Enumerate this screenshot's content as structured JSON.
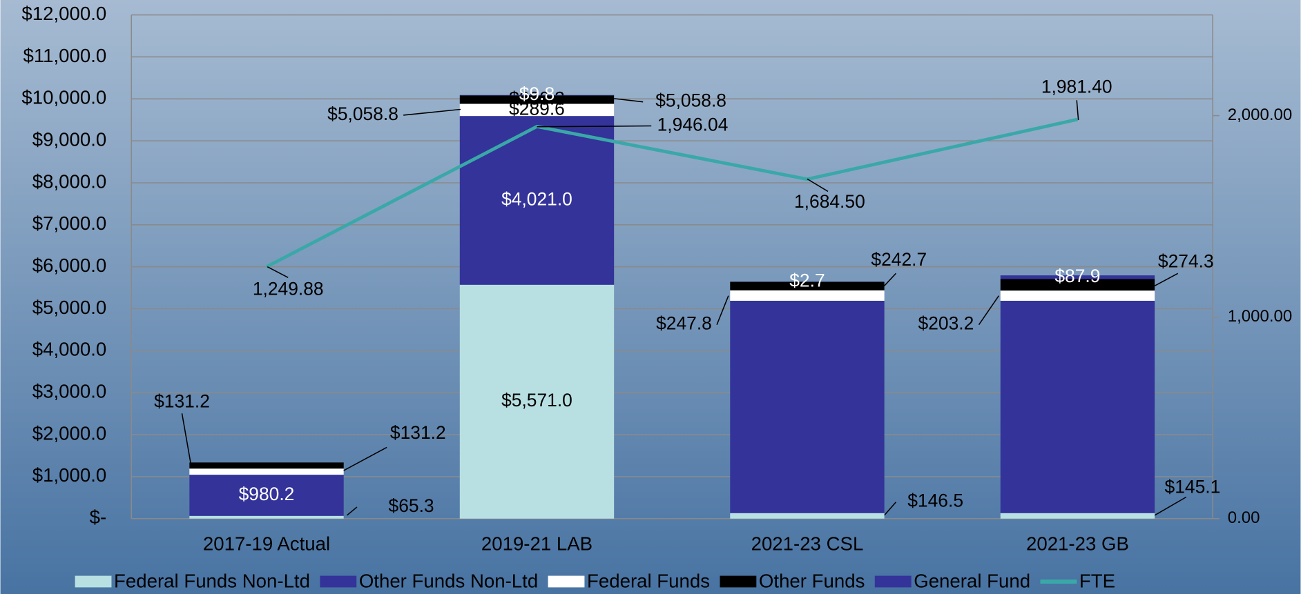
{
  "chart_data": {
    "type": "bar",
    "stacked": true,
    "categories": [
      "2017-19 Actual",
      "2019-21 LAB",
      "2021-23 CSL",
      "2021-23 GB"
    ],
    "series": [
      {
        "name": "Federal Funds Non-Ltd",
        "color": "#b8e0e2",
        "values": [
          65.3,
          5571.0,
          131.2,
          131.2
        ],
        "value_labels": [
          "$65.3",
          "$5,571.0",
          "$131.2",
          "$131.2"
        ]
      },
      {
        "name": "Other Funds Non-Ltd",
        "color": "#333399",
        "values": [
          980.2,
          4021.0,
          5058.8,
          5058.8
        ],
        "value_labels": [
          "$980.2",
          "$4,021.0",
          "$5,058.8",
          "$5,058.8"
        ]
      },
      {
        "name": "Federal Funds",
        "color": "#ffffff",
        "values": [
          146.5,
          289.6,
          247.8,
          242.7
        ],
        "value_labels": [
          "$146.5",
          "$289.6",
          "$247.8",
          "$242.7"
        ]
      },
      {
        "name": "Other Funds",
        "color": "#000000",
        "values": [
          145.1,
          200.3,
          203.2,
          274.3
        ],
        "value_labels": [
          "$145.1",
          "$200.3",
          "$203.2",
          "$274.3"
        ]
      },
      {
        "name": "General Fund",
        "color": "#333399",
        "values": [
          null,
          9.8,
          2.7,
          87.9
        ],
        "value_labels": [
          null,
          "$9.8",
          "$2.7",
          "$87.9"
        ]
      },
      {
        "name": "FTE",
        "color": "#3aa8a8",
        "type": "line",
        "axis": "y2",
        "values": [
          1249.88,
          1946.04,
          1684.5,
          1981.4
        ],
        "value_labels": [
          "1,249.88",
          "1,946.04",
          "1,684.50",
          "1,981.40"
        ]
      }
    ],
    "ylim": [
      0,
      12000
    ],
    "yticks": [
      {
        "value": 0,
        "label": "$-"
      },
      {
        "value": 1000,
        "label": "$1,000.0"
      },
      {
        "value": 2000,
        "label": "$2,000.0"
      },
      {
        "value": 3000,
        "label": "$3,000.0"
      },
      {
        "value": 4000,
        "label": "$4,000.0"
      },
      {
        "value": 5000,
        "label": "$5,000.0"
      },
      {
        "value": 6000,
        "label": "$6,000.0"
      },
      {
        "value": 7000,
        "label": "$7,000.0"
      },
      {
        "value": 8000,
        "label": "$8,000.0"
      },
      {
        "value": 9000,
        "label": "$9,000.0"
      },
      {
        "value": 10000,
        "label": "$10,000.0"
      },
      {
        "value": 11000,
        "label": "$11,000.0"
      },
      {
        "value": 12000,
        "label": "$12,000.0"
      }
    ],
    "y2lim": [
      0,
      2500
    ],
    "y2ticks": [
      {
        "value": 0,
        "label": "0.00"
      },
      {
        "value": 1000,
        "label": "1,000.00"
      },
      {
        "value": 2000,
        "label": "2,000.00"
      }
    ],
    "grid": true,
    "legend": "bottom"
  }
}
